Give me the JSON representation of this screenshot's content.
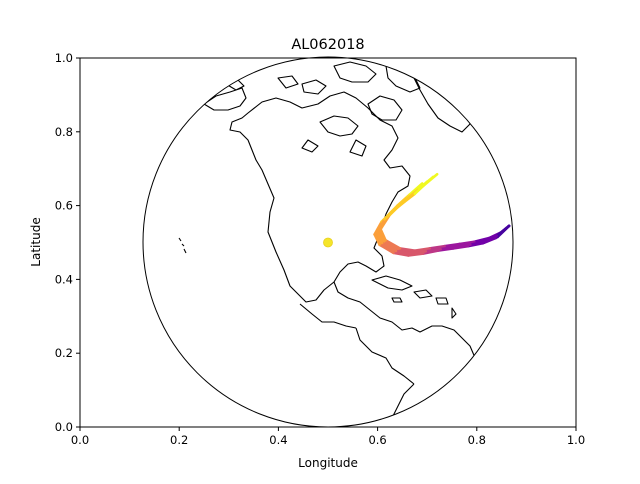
{
  "chart_data": {
    "type": "map-projection",
    "title": "AL062018",
    "xlabel": "Longitude",
    "ylabel": "Latitude",
    "xlim": [
      0.0,
      1.0
    ],
    "ylim": [
      0.0,
      1.0
    ],
    "xticks": [
      "0.0",
      "0.2",
      "0.4",
      "0.6",
      "0.8",
      "1.0"
    ],
    "yticks": [
      "0.0",
      "0.2",
      "0.4",
      "0.6",
      "0.8",
      "1.0"
    ],
    "grid": false,
    "projection": "orthographic",
    "globe_center": [
      0.5,
      0.5
    ],
    "center_marker": {
      "x": 0.5,
      "y": 0.5,
      "color": "#f5e52a"
    },
    "track_colormap": [
      "#f0f921",
      "#fdca26",
      "#fb9f3a",
      "#ed7953",
      "#d8576b",
      "#bd3786",
      "#9c179e",
      "#7201a8",
      "#46039f"
    ],
    "ensemble_tracks": [
      {
        "points": [
          [
            0.865,
            0.545
          ],
          [
            0.845,
            0.52
          ],
          [
            0.82,
            0.505
          ],
          [
            0.79,
            0.495
          ],
          [
            0.76,
            0.49
          ],
          [
            0.73,
            0.485
          ],
          [
            0.7,
            0.478
          ],
          [
            0.67,
            0.472
          ],
          [
            0.64,
            0.478
          ],
          [
            0.61,
            0.5
          ],
          [
            0.6,
            0.53
          ],
          [
            0.615,
            0.565
          ],
          [
            0.64,
            0.6
          ],
          [
            0.665,
            0.63
          ],
          [
            0.69,
            0.66
          ]
        ]
      },
      {
        "points": [
          [
            0.865,
            0.545
          ],
          [
            0.842,
            0.515
          ],
          [
            0.815,
            0.5
          ],
          [
            0.785,
            0.492
          ],
          [
            0.755,
            0.486
          ],
          [
            0.725,
            0.48
          ],
          [
            0.695,
            0.474
          ],
          [
            0.665,
            0.468
          ],
          [
            0.635,
            0.475
          ],
          [
            0.608,
            0.497
          ],
          [
            0.597,
            0.525
          ],
          [
            0.612,
            0.56
          ],
          [
            0.64,
            0.595
          ],
          [
            0.67,
            0.628
          ],
          [
            0.7,
            0.665
          ]
        ]
      },
      {
        "points": [
          [
            0.865,
            0.545
          ],
          [
            0.848,
            0.525
          ],
          [
            0.822,
            0.51
          ],
          [
            0.792,
            0.5
          ],
          [
            0.762,
            0.494
          ],
          [
            0.732,
            0.488
          ],
          [
            0.702,
            0.482
          ],
          [
            0.672,
            0.476
          ],
          [
            0.642,
            0.482
          ],
          [
            0.613,
            0.503
          ],
          [
            0.603,
            0.533
          ],
          [
            0.62,
            0.57
          ],
          [
            0.648,
            0.607
          ],
          [
            0.68,
            0.64
          ],
          [
            0.72,
            0.685
          ]
        ]
      },
      {
        "points": [
          [
            0.865,
            0.545
          ],
          [
            0.838,
            0.512
          ],
          [
            0.812,
            0.498
          ],
          [
            0.782,
            0.49
          ],
          [
            0.752,
            0.484
          ],
          [
            0.722,
            0.478
          ],
          [
            0.692,
            0.47
          ],
          [
            0.662,
            0.465
          ],
          [
            0.632,
            0.472
          ],
          [
            0.604,
            0.494
          ],
          [
            0.594,
            0.522
          ],
          [
            0.608,
            0.556
          ],
          [
            0.633,
            0.59
          ],
          [
            0.66,
            0.622
          ],
          [
            0.685,
            0.65
          ]
        ]
      },
      {
        "points": [
          [
            0.865,
            0.545
          ],
          [
            0.85,
            0.528
          ],
          [
            0.825,
            0.512
          ],
          [
            0.795,
            0.502
          ],
          [
            0.765,
            0.496
          ],
          [
            0.735,
            0.49
          ],
          [
            0.705,
            0.484
          ],
          [
            0.675,
            0.478
          ],
          [
            0.645,
            0.484
          ],
          [
            0.616,
            0.506
          ],
          [
            0.606,
            0.536
          ],
          [
            0.624,
            0.574
          ],
          [
            0.652,
            0.612
          ],
          [
            0.684,
            0.645
          ],
          [
            0.712,
            0.678
          ]
        ]
      },
      {
        "points": [
          [
            0.865,
            0.545
          ],
          [
            0.84,
            0.518
          ],
          [
            0.817,
            0.503
          ],
          [
            0.787,
            0.494
          ],
          [
            0.757,
            0.488
          ],
          [
            0.727,
            0.482
          ],
          [
            0.697,
            0.476
          ],
          [
            0.667,
            0.47
          ],
          [
            0.637,
            0.477
          ],
          [
            0.609,
            0.499
          ],
          [
            0.599,
            0.528
          ],
          [
            0.614,
            0.563
          ],
          [
            0.642,
            0.598
          ],
          [
            0.675,
            0.632
          ],
          [
            0.705,
            0.67
          ]
        ]
      }
    ]
  }
}
